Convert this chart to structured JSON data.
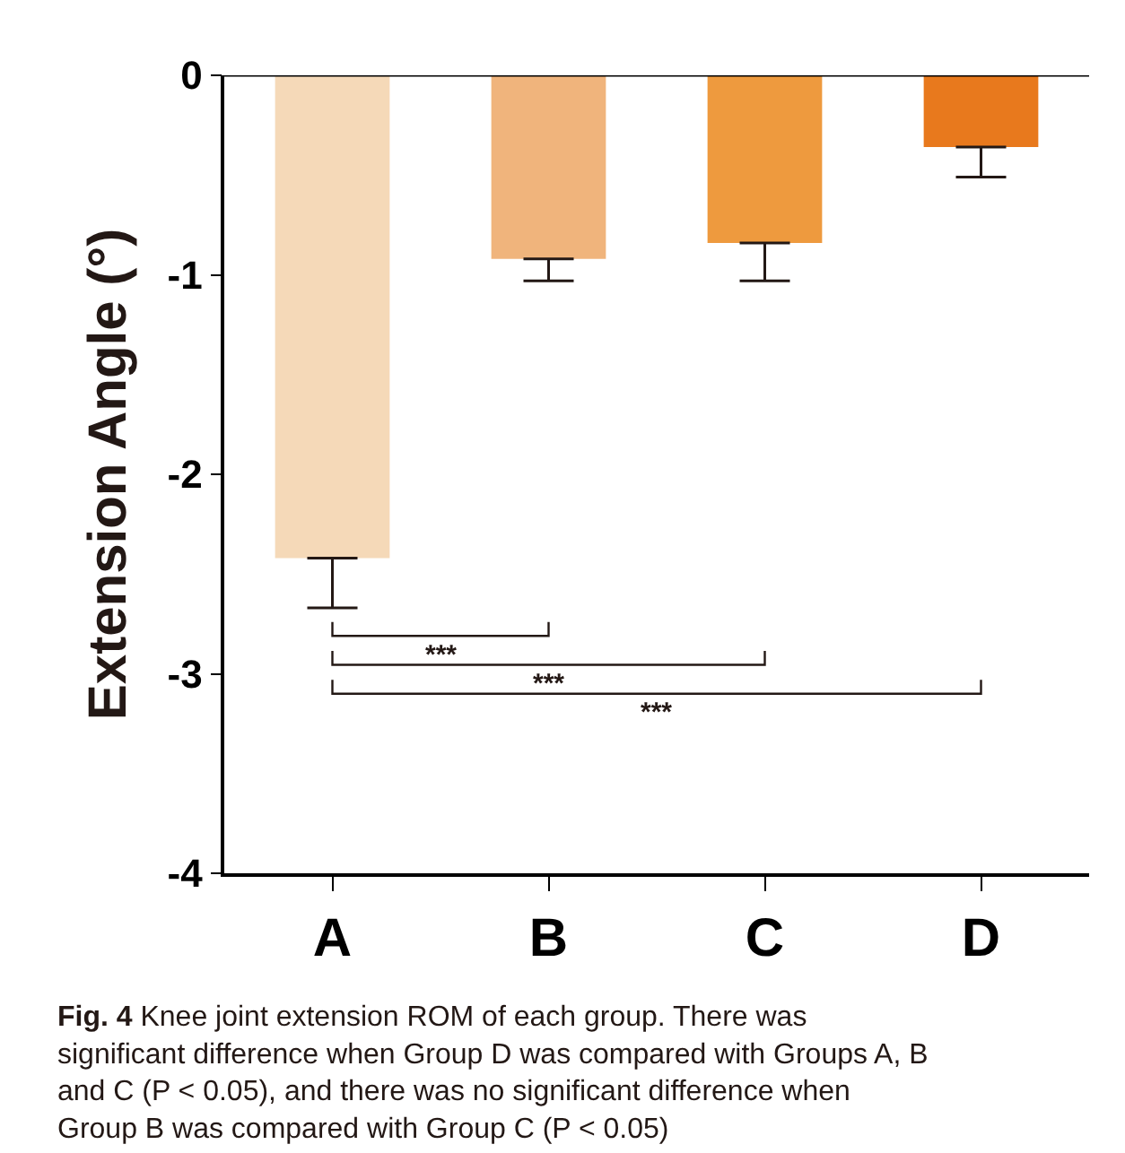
{
  "chart_data": {
    "type": "bar",
    "ylabel": "Extension Angle (°)",
    "categories": [
      "A",
      "B",
      "C",
      "D"
    ],
    "values": [
      -2.42,
      -0.92,
      -0.84,
      -0.36
    ],
    "colors": [
      "#f5d9b8",
      "#f0b47c",
      "#ee9a3e",
      "#e8791d"
    ],
    "errors": [
      [
        -2.67,
        -2.42
      ],
      [
        -1.03,
        -0.92
      ],
      [
        -1.03,
        -0.84
      ],
      [
        -0.51,
        -0.36
      ]
    ],
    "ylim": [
      -4,
      0
    ],
    "yticks": [
      0,
      -1,
      -2,
      -3,
      -4
    ],
    "annotations": [
      "***",
      "***",
      "***",
      "Fig. 4 Knee joint extension ROM of each group. There was significant difference when Group D was compared with Groups A, B and C (P < 0.05), and there was no significant difference when Group B was compared with Group C (P < 0.05)"
    ]
  }
}
